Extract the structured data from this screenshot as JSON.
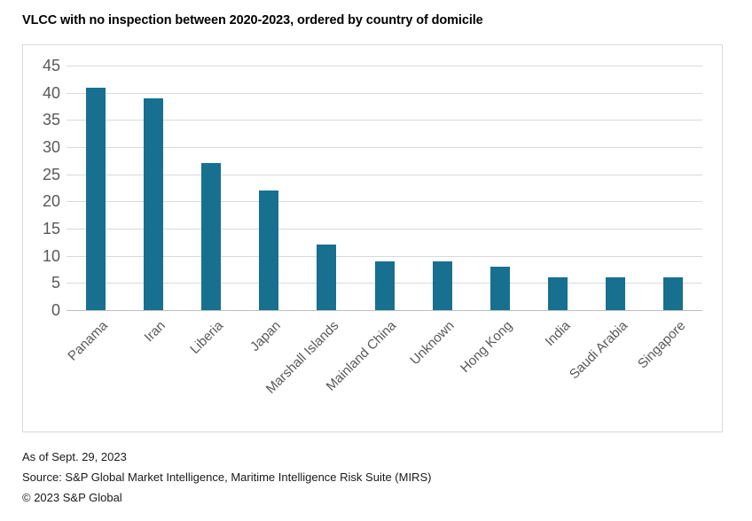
{
  "title": "VLCC with no inspection between 2020-2023, ordered by country of domicile",
  "chart_data": {
    "type": "bar",
    "title": "VLCC with no inspection between 2020-2023, ordered by country of domicile",
    "categories": [
      "Panama",
      "Iran",
      "Liberia",
      "Japan",
      "Marshall Islands",
      "Mainland China",
      "Unknown",
      "Hong Kong",
      "India",
      "Saudi Arabia",
      "Singapore"
    ],
    "values": [
      41,
      39,
      27,
      22,
      12,
      9,
      9,
      8,
      6,
      6,
      6
    ],
    "xlabel": "",
    "ylabel": "",
    "ylim": [
      0,
      45
    ],
    "yticks": [
      45,
      40,
      35,
      30,
      25,
      20,
      15,
      10,
      5,
      0
    ],
    "grid": true,
    "legend": "none",
    "x_label_rotation_deg": -45,
    "bar_color": "#17708F",
    "gridline_color": "#D9D9D9",
    "axis_line_color": "#BFBFBF",
    "axis_text_color": "#595959",
    "plot_border_color": "#D9D9D9"
  },
  "footer": {
    "as_of": "As of Sept. 29, 2023",
    "source": "Source: S&P Global Market Intelligence, Maritime Intelligence Risk Suite (MIRS)",
    "copyright": "© 2023 S&P Global"
  }
}
